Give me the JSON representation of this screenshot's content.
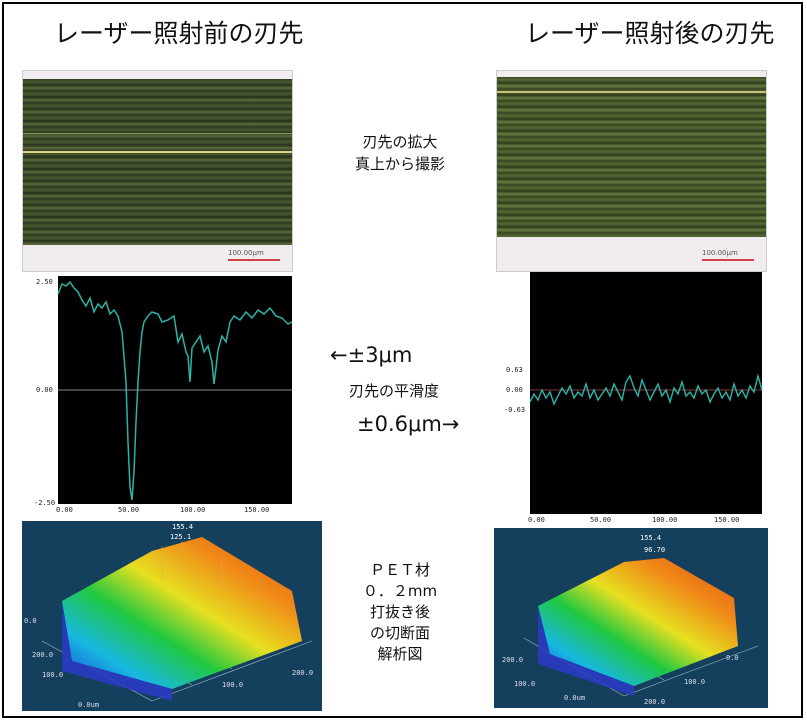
{
  "left": {
    "title": "レーザー照射前の刃先",
    "scale_label": "100.00μm",
    "ticks": {
      "ytop": "2.50",
      "ymid": "0.00",
      "ybot": "-2.50",
      "x": [
        "0.00",
        "50.00",
        "100.00",
        "150.00"
      ]
    },
    "surface_labels": [
      "155.4",
      "125.1",
      "0.0",
      "200.0",
      "100.0",
      "0.0um",
      "100.0",
      "200.0"
    ]
  },
  "right": {
    "title": "レーザー照射後の刃先",
    "scale_label": "100.00μm",
    "ticks": {
      "ytop": "0.63",
      "ymid": "0.00",
      "ybot": "-0.63",
      "x": [
        "0.00",
        "50.00",
        "100.00",
        "150.00"
      ]
    },
    "surface_labels": [
      "155.4",
      "96.70",
      "200.0",
      "100.0",
      "0.0",
      "0.0um",
      "100.0",
      "200.0"
    ]
  },
  "center": {
    "cap1": [
      "刃先の拡大",
      "真上から撮影"
    ],
    "arrow_left": "←±3μm",
    "smooth": "刃先の平滑度",
    "arrow_right": "±0.6μm→",
    "cap3": [
      "ＰＥＴ材",
      "０．２mm",
      "打抜き後",
      "の切断面",
      "解析図"
    ]
  }
}
